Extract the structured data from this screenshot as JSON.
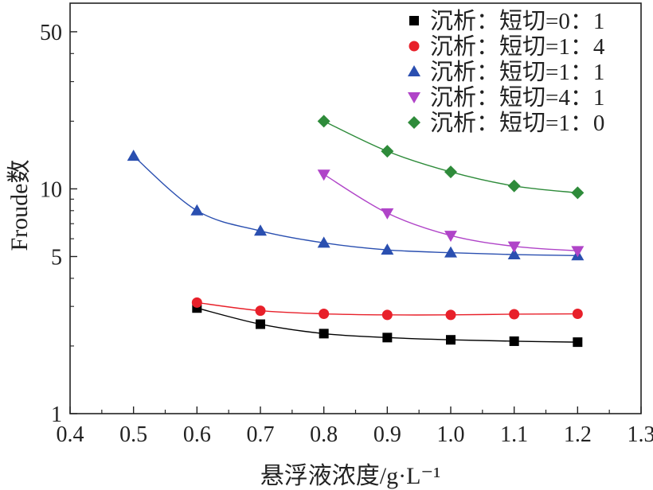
{
  "chart_data": {
    "type": "scatter",
    "xlabel": "悬浮液浓度/g·L⁻¹",
    "ylabel": "Froude数",
    "x_scale": "linear",
    "y_scale": "log",
    "xlim": [
      0.4,
      1.3
    ],
    "ylim": [
      1,
      67
    ],
    "x_ticks": [
      "0.4",
      "0.5",
      "0.6",
      "0.7",
      "0.8",
      "0.9",
      "1.0",
      "1.1",
      "1.2",
      "1.3"
    ],
    "y_ticks": [
      "1",
      "5",
      "10",
      "50"
    ],
    "grid": false,
    "legend_position": "top-right",
    "series": [
      {
        "name": "沉析：短切=0：1",
        "marker": "square",
        "color": "#000000",
        "x": [
          0.6,
          0.7,
          0.8,
          0.9,
          1.0,
          1.1,
          1.2
        ],
        "y": [
          2.95,
          2.5,
          2.27,
          2.18,
          2.13,
          2.1,
          2.08
        ]
      },
      {
        "name": "沉析：短切=1：4",
        "marker": "circle",
        "color": "#e8202a",
        "x": [
          0.6,
          0.7,
          0.8,
          0.9,
          1.0,
          1.1,
          1.2
        ],
        "y": [
          3.12,
          2.87,
          2.78,
          2.75,
          2.75,
          2.77,
          2.78
        ]
      },
      {
        "name": "沉析：短切=1：1",
        "marker": "triangle-up",
        "color": "#2a4fb0",
        "x": [
          0.5,
          0.6,
          0.7,
          0.8,
          0.9,
          1.0,
          1.1,
          1.2
        ],
        "y": [
          14.0,
          8.0,
          6.5,
          5.75,
          5.35,
          5.2,
          5.1,
          5.05
        ]
      },
      {
        "name": "沉析：短切=4：1",
        "marker": "triangle-down",
        "color": "#b044c8",
        "x": [
          0.8,
          0.9,
          1.0,
          1.1,
          1.2
        ],
        "y": [
          11.6,
          7.8,
          6.2,
          5.55,
          5.3
        ]
      },
      {
        "name": "沉析：短切=1：0",
        "marker": "diamond",
        "color": "#2e8b3a",
        "x": [
          0.8,
          0.9,
          1.0,
          1.1,
          1.2
        ],
        "y": [
          20.0,
          14.7,
          11.9,
          10.3,
          9.6
        ]
      }
    ]
  }
}
